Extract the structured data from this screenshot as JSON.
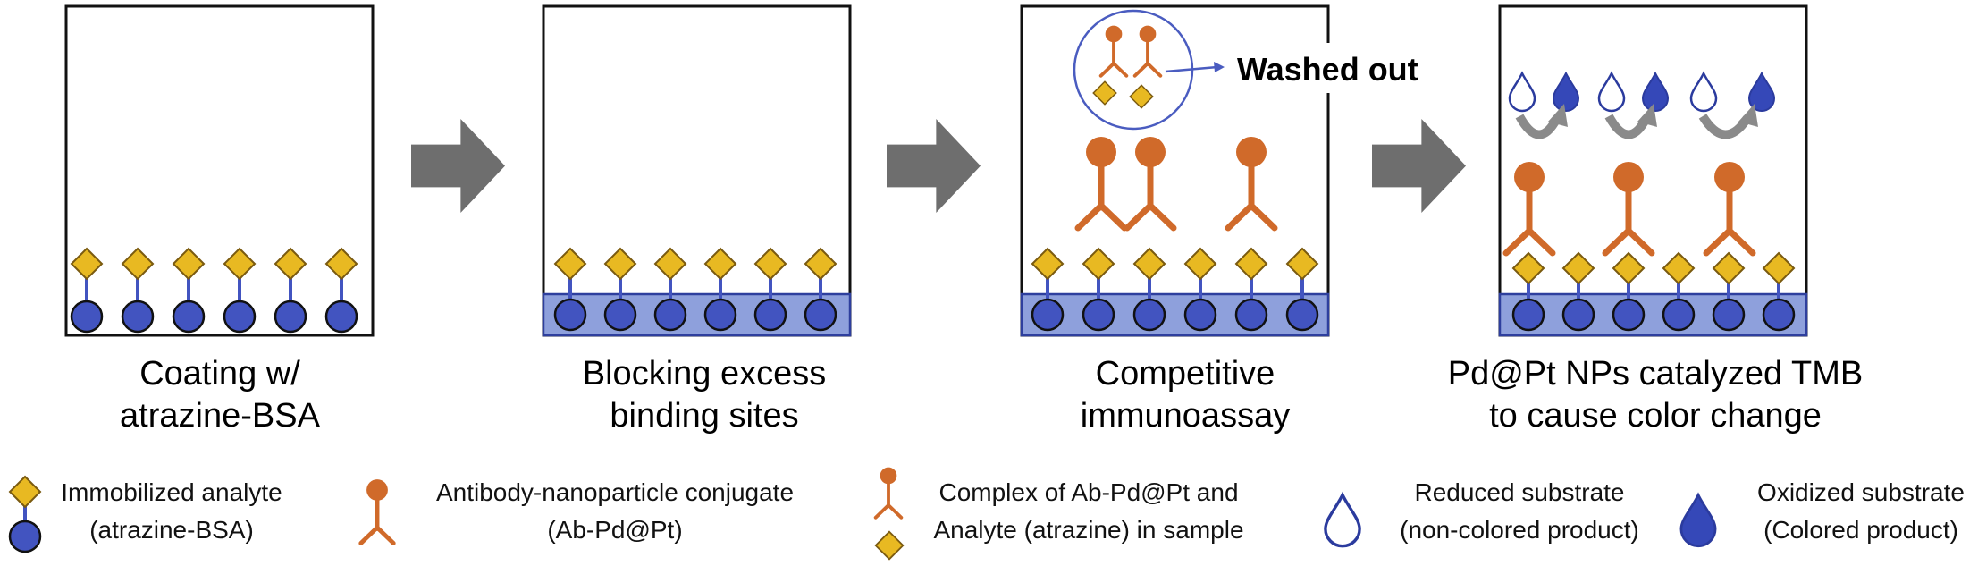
{
  "colors": {
    "analyte": "#e8b922",
    "analyte_stroke": "#7a5a10",
    "bsa": "#4254c0",
    "bsa_stroke": "#111111",
    "block_fill": "#8ea0dc",
    "block_stroke": "#2e3f9e",
    "antibody": "#d06a2a",
    "arrow_gray": "#6e6e6e",
    "curve_gray": "#8a8a8a",
    "callout_stroke": "#4a5cc0"
  },
  "panels": [
    {
      "caption_line1": "Coating w/",
      "caption_line2": "atrazine-BSA"
    },
    {
      "caption_line1": "Blocking excess",
      "caption_line2": "binding sites"
    },
    {
      "caption_line1": "Competitive",
      "caption_line2": "immunoassay",
      "callout_label": "Washed out"
    },
    {
      "caption_line1": "Pd@Pt NPs catalyzed TMB",
      "caption_line2": "to cause color change"
    }
  ],
  "legend": [
    {
      "icon": "analyte-bsa-icon",
      "line1": "Immobilized analyte",
      "line2": "(atrazine-BSA)"
    },
    {
      "icon": "antibody-conjugate-icon",
      "line1": "Antibody-nanoparticle conjugate",
      "line2": "(Ab-Pd@Pt)"
    },
    {
      "icon": "complex-icon",
      "line1": "Complex of Ab-Pd@Pt and",
      "line2": "Analyte (atrazine) in sample"
    },
    {
      "icon": "reduced-drop-icon",
      "line1": "Reduced substrate",
      "line2": "(non-colored product)"
    },
    {
      "icon": "oxidized-drop-icon",
      "line1": "Oxidized substrate",
      "line2": "(Colored product)"
    }
  ]
}
